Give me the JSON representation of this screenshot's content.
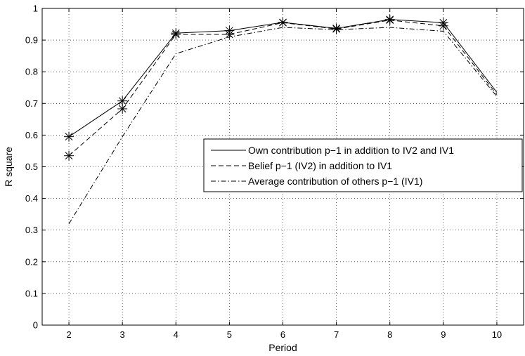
{
  "chart_data": {
    "type": "line",
    "title": "",
    "xlabel": "Period",
    "ylabel": "R square",
    "xlim": [
      1.5,
      10.5
    ],
    "ylim": [
      0,
      1
    ],
    "grid": true,
    "legend_placement": "center-right",
    "x": [
      2,
      3,
      4,
      5,
      6,
      7,
      8,
      9,
      10
    ],
    "x_tick_labels": [
      "2",
      "3",
      "4",
      "5",
      "6",
      "7",
      "8",
      "9",
      "10"
    ],
    "y_tick_labels": [
      "0",
      "0.1",
      "0.2",
      "0.3",
      "0.4",
      "0.5",
      "0.6",
      "0.7",
      "0.8",
      "0.9",
      "1"
    ],
    "y_ticks": [
      0,
      0.1,
      0.2,
      0.3,
      0.4,
      0.5,
      0.6,
      0.7,
      0.8,
      0.9,
      1
    ],
    "series": [
      {
        "name": "Own contribution p−1 in addition to IV2 and IV1",
        "style": "solid",
        "marker": "asterisk",
        "marker_count": 8,
        "values": [
          0.595,
          0.708,
          0.922,
          0.93,
          0.956,
          0.937,
          0.965,
          0.955,
          0.735
        ]
      },
      {
        "name": "Belief p−1 (IV2) in addition to IV1",
        "style": "dashed",
        "marker": "asterisk",
        "marker_count": 8,
        "values": [
          0.535,
          0.683,
          0.918,
          0.918,
          0.955,
          0.935,
          0.963,
          0.945,
          0.728
        ]
      },
      {
        "name": "Average contribution of others p−1 (IV1)",
        "style": "dashdot",
        "marker": "none",
        "marker_count": 0,
        "values": [
          0.32,
          0.595,
          0.857,
          0.91,
          0.94,
          0.933,
          0.94,
          0.928,
          0.722
        ]
      }
    ],
    "colors": {
      "line": "#000000",
      "grid": "#000000",
      "background": "#ffffff"
    }
  }
}
